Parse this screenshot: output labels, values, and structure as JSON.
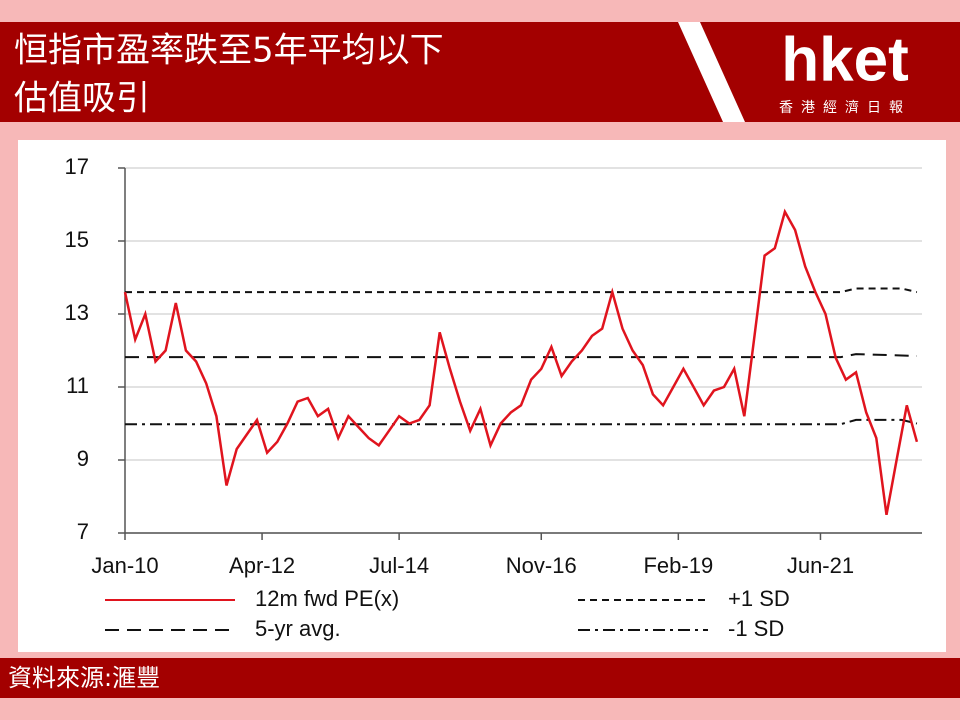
{
  "header": {
    "title_lines": [
      "恒指市盈率跌至5年平均以下",
      "估值吸引"
    ],
    "logo": "hket",
    "logo_sub": "香港經濟日報"
  },
  "footer": {
    "source": "資料來源:滙豐"
  },
  "chart_data": {
    "type": "line",
    "xlim": [
      "2010-01",
      "2023-02"
    ],
    "xticks": [
      {
        "value": "2010-01",
        "label": "Jan-10"
      },
      {
        "value": "2012-04",
        "label": "Apr-12"
      },
      {
        "value": "2014-07",
        "label": "Jul-14"
      },
      {
        "value": "2016-11",
        "label": "Nov-16"
      },
      {
        "value": "2019-02",
        "label": "Feb-19"
      },
      {
        "value": "2021-06",
        "label": "Jun-21"
      }
    ],
    "ylim": [
      7,
      17
    ],
    "yticks": [
      7,
      9,
      11,
      13,
      15,
      17
    ],
    "grid": true,
    "x": [
      "2010-01",
      "2010-03",
      "2010-05",
      "2010-07",
      "2010-09",
      "2010-11",
      "2011-01",
      "2011-03",
      "2011-05",
      "2011-07",
      "2011-09",
      "2011-11",
      "2012-01",
      "2012-03",
      "2012-05",
      "2012-07",
      "2012-09",
      "2012-11",
      "2013-01",
      "2013-03",
      "2013-05",
      "2013-07",
      "2013-09",
      "2013-11",
      "2014-01",
      "2014-03",
      "2014-05",
      "2014-07",
      "2014-09",
      "2014-11",
      "2015-01",
      "2015-03",
      "2015-05",
      "2015-07",
      "2015-09",
      "2015-11",
      "2016-01",
      "2016-03",
      "2016-05",
      "2016-07",
      "2016-09",
      "2016-11",
      "2017-01",
      "2017-03",
      "2017-05",
      "2017-07",
      "2017-09",
      "2017-11",
      "2018-01",
      "2018-03",
      "2018-05",
      "2018-07",
      "2018-09",
      "2018-11",
      "2019-01",
      "2019-03",
      "2019-05",
      "2019-07",
      "2019-09",
      "2019-11",
      "2020-01",
      "2020-03",
      "2020-05",
      "2020-07",
      "2020-09",
      "2020-11",
      "2021-01",
      "2021-03",
      "2021-05",
      "2021-07",
      "2021-09",
      "2021-11",
      "2022-01",
      "2022-03",
      "2022-05",
      "2022-07",
      "2022-09",
      "2022-11",
      "2023-01"
    ],
    "series": [
      {
        "name": "12m fwd PE(x)",
        "color": "#e0141e",
        "style": "solid",
        "values": [
          13.6,
          12.3,
          13.0,
          11.7,
          12.0,
          13.3,
          12.0,
          11.7,
          11.1,
          10.2,
          8.3,
          9.3,
          9.7,
          10.1,
          9.2,
          9.5,
          10.0,
          10.6,
          10.7,
          10.2,
          10.4,
          9.6,
          10.2,
          9.9,
          9.6,
          9.4,
          9.8,
          10.2,
          10.0,
          10.1,
          10.5,
          12.5,
          11.5,
          10.6,
          9.8,
          10.4,
          9.4,
          10.0,
          10.3,
          10.5,
          11.2,
          11.5,
          12.1,
          11.3,
          11.7,
          12.0,
          12.4,
          12.6,
          13.6,
          12.6,
          12.0,
          11.6,
          10.8,
          10.5,
          11.0,
          11.5,
          11.0,
          10.5,
          10.9,
          11.0,
          11.5,
          10.2,
          12.4,
          14.6,
          14.8,
          15.8,
          15.3,
          14.3,
          13.6,
          13.0,
          11.8,
          11.2,
          11.4,
          10.3,
          9.6,
          7.5,
          9.0,
          10.5,
          9.5
        ]
      },
      {
        "name": "5-yr avg.",
        "color": "#111111",
        "style": "longdash",
        "x": [
          "2010-01",
          "2021-10",
          "2022-01",
          "2023-01"
        ],
        "values": [
          11.82,
          11.82,
          11.9,
          11.85
        ]
      },
      {
        "name": "+1 SD",
        "color": "#111111",
        "style": "shortdash",
        "x": [
          "2010-01",
          "2021-10",
          "2022-01",
          "2022-10",
          "2023-01"
        ],
        "values": [
          13.6,
          13.6,
          13.7,
          13.7,
          13.6
        ]
      },
      {
        "name": "-1 SD",
        "color": "#111111",
        "style": "dashdot",
        "x": [
          "2010-01",
          "2021-10",
          "2022-01",
          "2022-10",
          "2023-01"
        ],
        "values": [
          9.98,
          9.98,
          10.1,
          10.1,
          10.0
        ]
      }
    ]
  }
}
